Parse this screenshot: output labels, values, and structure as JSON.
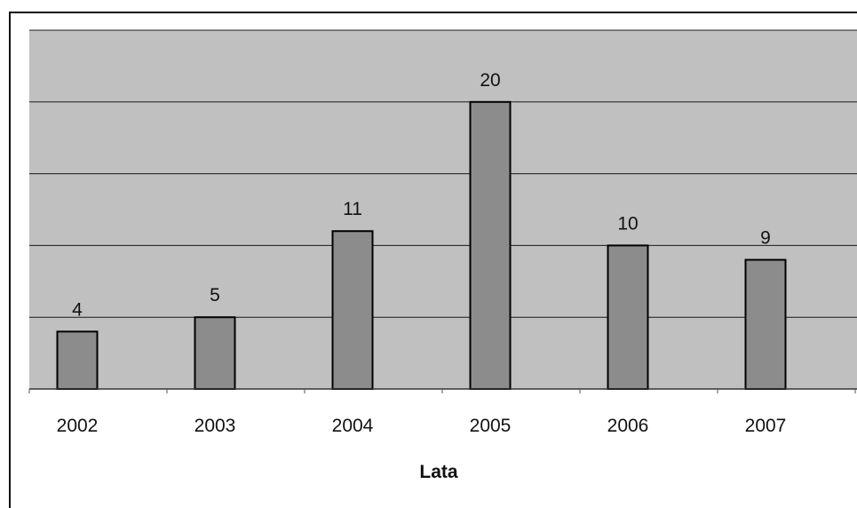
{
  "chart_data": {
    "type": "bar",
    "categories": [
      "2002",
      "2003",
      "2004",
      "2005",
      "2006",
      "2007"
    ],
    "values": [
      4,
      5,
      11,
      20,
      10,
      9
    ],
    "data_labels": [
      "4",
      "5",
      "11",
      "20",
      "10",
      "9"
    ],
    "title": "",
    "xlabel": "Lata",
    "ylabel": "",
    "ylim": [
      0,
      25
    ],
    "grid": true,
    "legend": "none",
    "colors": {
      "bar": "#8c8c8c",
      "bar_border": "#000000",
      "plot_background": "#c0c0c0",
      "gridline": "#1a1a1a"
    }
  }
}
